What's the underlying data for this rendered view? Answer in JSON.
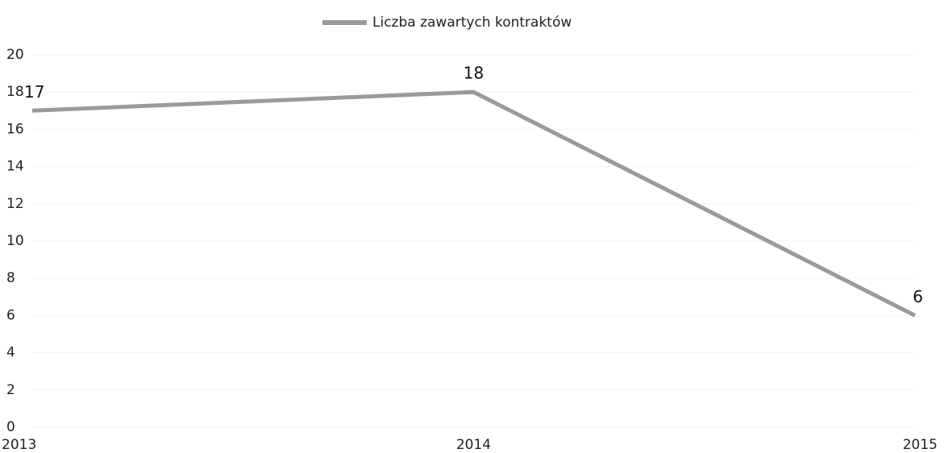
{
  "chart_data": {
    "type": "line",
    "categories": [
      "2013",
      "2014",
      "2015"
    ],
    "series": [
      {
        "name": "Liczba zawartych kontraktów",
        "color": "#9a9a9a",
        "values": [
          17,
          18,
          6
        ]
      }
    ],
    "ylim": [
      0,
      20
    ],
    "yticks": [
      0,
      2,
      4,
      6,
      8,
      10,
      12,
      14,
      16,
      18,
      20
    ],
    "grid": true,
    "legend": "top"
  }
}
